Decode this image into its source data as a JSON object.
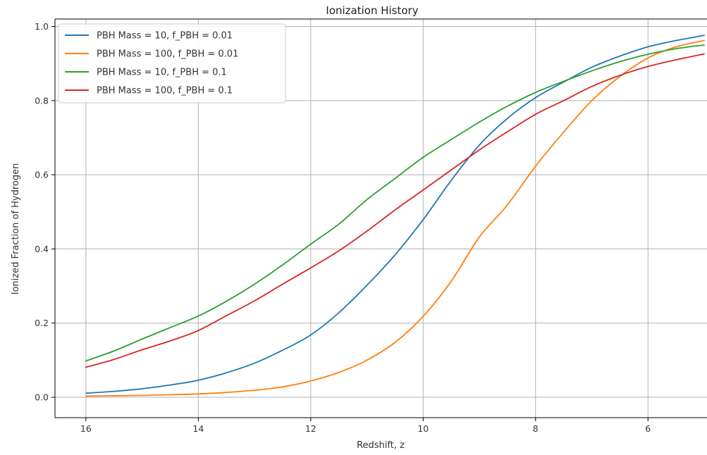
{
  "chart_data": {
    "type": "line",
    "title": "Ionization History",
    "xlabel": "Redshift, z",
    "ylabel": "Ionized Fraction of Hydrogen",
    "xlim": [
      16.55,
      4.95
    ],
    "ylim": [
      -0.055,
      1.02
    ],
    "x_reversed": true,
    "xticks": [
      16,
      14,
      12,
      10,
      8,
      6
    ],
    "yticks": [
      0.0,
      0.2,
      0.4,
      0.6,
      0.8,
      1.0
    ],
    "xtick_labels": [
      "16",
      "14",
      "12",
      "10",
      "8",
      "6"
    ],
    "ytick_labels": [
      "0.0",
      "0.2",
      "0.4",
      "0.6",
      "0.8",
      "1.0"
    ],
    "grid": true,
    "legend_position": "top-left",
    "x": [
      16,
      15.5,
      15,
      14.5,
      14,
      13.5,
      13,
      12.5,
      12,
      11.5,
      11,
      10.5,
      10,
      9.5,
      9,
      8.5,
      8,
      7.5,
      7,
      6.5,
      6,
      5.5,
      5
    ],
    "series": [
      {
        "name": "PBH Mass = 10, f_PBH = 0.01",
        "color": "#1f77b4",
        "values": [
          0.011,
          0.016,
          0.023,
          0.033,
          0.046,
          0.066,
          0.092,
          0.127,
          0.168,
          0.228,
          0.302,
          0.384,
          0.479,
          0.585,
          0.68,
          0.752,
          0.808,
          0.85,
          0.89,
          0.92,
          0.945,
          0.962,
          0.976
        ]
      },
      {
        "name": "PBH Mass = 100, f_PBH = 0.01",
        "color": "#ff7f0e",
        "values": [
          0.003,
          0.004,
          0.005,
          0.007,
          0.009,
          0.013,
          0.019,
          0.028,
          0.044,
          0.067,
          0.1,
          0.148,
          0.218,
          0.313,
          0.432,
          0.519,
          0.623,
          0.715,
          0.8,
          0.865,
          0.915,
          0.945,
          0.962
        ]
      },
      {
        "name": "PBH Mass = 10, f_PBH = 0.1",
        "color": "#2ca02c",
        "values": [
          0.098,
          0.125,
          0.157,
          0.188,
          0.219,
          0.259,
          0.305,
          0.357,
          0.413,
          0.467,
          0.533,
          0.59,
          0.647,
          0.695,
          0.742,
          0.785,
          0.822,
          0.852,
          0.88,
          0.905,
          0.925,
          0.94,
          0.95
        ]
      },
      {
        "name": "PBH Mass = 100, f_PBH = 0.1",
        "color": "#d62728",
        "values": [
          0.081,
          0.102,
          0.128,
          0.152,
          0.18,
          0.22,
          0.26,
          0.305,
          0.349,
          0.395,
          0.448,
          0.505,
          0.559,
          0.613,
          0.667,
          0.716,
          0.763,
          0.8,
          0.838,
          0.868,
          0.892,
          0.91,
          0.926
        ]
      }
    ]
  }
}
